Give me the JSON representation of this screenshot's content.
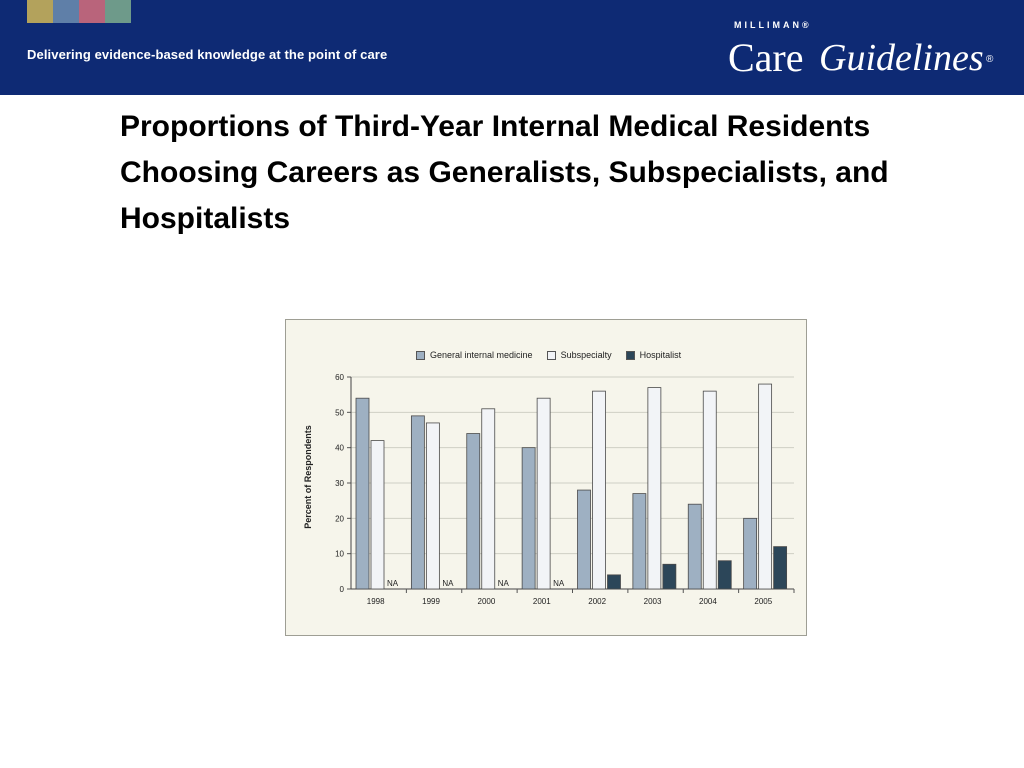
{
  "header": {
    "tagline": "Delivering evidence-based knowledge at the point of care",
    "swatch_colors": [
      "#b3a25c",
      "#5f7fa8",
      "#b9647b",
      "#6e9a8a"
    ],
    "logo": {
      "top": "MILLIMAN®",
      "care": "Care",
      "guidelines": "Guidelines",
      "reg": "®"
    }
  },
  "slide": {
    "title": "Proportions of Third-Year Internal Medical Residents Choosing Careers as Generalists, Subspecialists, and Hospitalists"
  },
  "chart_data": {
    "type": "bar",
    "categories": [
      "1998",
      "1999",
      "2000",
      "2001",
      "2002",
      "2003",
      "2004",
      "2005"
    ],
    "series": [
      {
        "name": "General internal medicine",
        "color": "#9eb0c2",
        "values": [
          54,
          49,
          44,
          40,
          28,
          27,
          24,
          20
        ]
      },
      {
        "name": "Subspecialty",
        "color": "#f2f4f7",
        "values": [
          42,
          47,
          51,
          54,
          56,
          57,
          56,
          58
        ]
      },
      {
        "name": "Hospitalist",
        "color": "#2c4659",
        "values": [
          null,
          null,
          null,
          null,
          4,
          7,
          8,
          12
        ]
      }
    ],
    "na_label": "NA",
    "ylabel": "Percent of Respondents",
    "ylim": [
      0,
      60
    ],
    "yticks": [
      0,
      10,
      20,
      30,
      40,
      50,
      60
    ],
    "grid": true,
    "legend_position": "top"
  }
}
